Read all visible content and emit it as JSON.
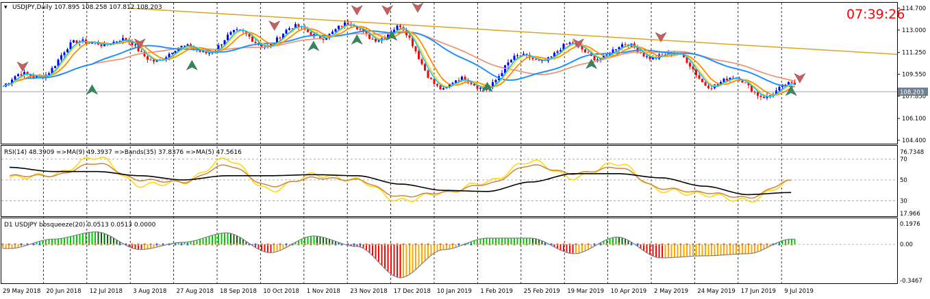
{
  "main_pane": {
    "header": "USDJPY,Daily  107.895 108.258 107.812 108.203",
    "clock": "07:39:26",
    "price_ticks": [
      "114.700",
      "113.000",
      "111.250",
      "109.550",
      "107.850",
      "106.100",
      "104.400"
    ],
    "current_price": "108.203",
    "colors": {
      "bull": "#0000ff",
      "bear": "#ff0000",
      "ma_fast": "#00bfff",
      "ma_slow": "#ffd700",
      "ma_orange": "#ff8c00",
      "ma_salmon": "#e9967a",
      "trend": "#daa520",
      "arrow_up": "#2e8b57",
      "arrow_down": "#cd5c5c"
    }
  },
  "rsi_pane": {
    "header": "RSI(14) 48.3909  =>MA(9) 49.3937  =>Bands(35) 37.8376  =>MA(5) 47.5616",
    "ticks": [
      "76.7348",
      "70",
      "50",
      "30",
      "17.966"
    ]
  },
  "squeeze_pane": {
    "header": "D1 USDJPY bbsqueeze(20) 0.0513 0.0513 0.0000",
    "ticks": [
      "0.1976",
      "0.00",
      "-0.3467"
    ]
  },
  "time_axis": {
    "labels": [
      "29 May 2018",
      "20 Jun 2018",
      "12 Jul 2018",
      "3 Aug 2018",
      "27 Aug 2018",
      "18 Sep 2018",
      "10 Oct 2018",
      "1 Nov 2018",
      "23 Nov 2018",
      "17 Dec 2018",
      "10 Jan 2019",
      "1 Feb 2019",
      "25 Feb 2019",
      "19 Mar 2019",
      "10 Apr 2019",
      "2 May 2019",
      "24 May 2019",
      "17 Jun 2019",
      "9 Jul 2019"
    ]
  },
  "chart_data": [
    {
      "type": "candlestick",
      "title": "USDJPY,Daily",
      "ohlc_last": {
        "open": 107.895,
        "high": 108.258,
        "low": 107.812,
        "close": 108.203
      },
      "ylim": [
        104.4,
        114.7
      ],
      "period": [
        "29 May 2018",
        "9 Jul 2019"
      ],
      "close_approx": [
        {
          "x": "29 May 2018",
          "y": 108.6
        },
        {
          "x": "20 Jun 2018",
          "y": 110.4
        },
        {
          "x": "12 Jul 2018",
          "y": 112.6
        },
        {
          "x": "3 Aug 2018",
          "y": 111.2
        },
        {
          "x": "27 Aug 2018",
          "y": 111.1
        },
        {
          "x": "18 Sep 2018",
          "y": 112.3
        },
        {
          "x": "10 Oct 2018",
          "y": 112.3
        },
        {
          "x": "1 Nov 2018",
          "y": 113.0
        },
        {
          "x": "23 Nov 2018",
          "y": 112.9
        },
        {
          "x": "17 Dec 2018",
          "y": 112.8
        },
        {
          "x": "10 Jan 2019",
          "y": 108.4
        },
        {
          "x": "1 Feb 2019",
          "y": 109.0
        },
        {
          "x": "25 Feb 2019",
          "y": 111.0
        },
        {
          "x": "19 Mar 2019",
          "y": 111.4
        },
        {
          "x": "10 Apr 2019",
          "y": 111.3
        },
        {
          "x": "2 May 2019",
          "y": 111.4
        },
        {
          "x": "24 May 2019",
          "y": 109.3
        },
        {
          "x": "17 Jun 2019",
          "y": 108.5
        },
        {
          "x": "9 Jul 2019",
          "y": 108.2
        }
      ]
    },
    {
      "type": "line",
      "title": "RSI(14)",
      "ylim": [
        17.966,
        76.7348
      ],
      "series": [
        {
          "name": "RSI(14)",
          "color": "#ffd700",
          "values": [
            52,
            55,
            72,
            45,
            48,
            70,
            40,
            55,
            50,
            30,
            38,
            48,
            68,
            52,
            66,
            40,
            36,
            30,
            48
          ]
        },
        {
          "name": "MA(9)",
          "color": "#cd853f",
          "values": [
            54,
            54,
            66,
            50,
            48,
            64,
            44,
            52,
            50,
            34,
            38,
            46,
            64,
            56,
            62,
            42,
            38,
            33,
            49
          ]
        },
        {
          "name": "Bands(35)",
          "color": "#000000",
          "values": [
            62,
            58,
            58,
            54,
            50,
            54,
            54,
            55,
            54,
            46,
            40,
            39,
            48,
            56,
            56,
            52,
            44,
            36,
            38
          ]
        }
      ]
    },
    {
      "type": "bar",
      "title": "bbsqueeze(20)",
      "ylim": [
        -0.3467,
        0.1976
      ],
      "values": [
        -0.04,
        0.05,
        0.12,
        -0.05,
        0.02,
        0.11,
        -0.08,
        0.08,
        -0.02,
        -0.32,
        -0.05,
        0.06,
        0.06,
        -0.09,
        0.07,
        -0.13,
        -0.11,
        -0.09,
        0.05
      ]
    }
  ]
}
